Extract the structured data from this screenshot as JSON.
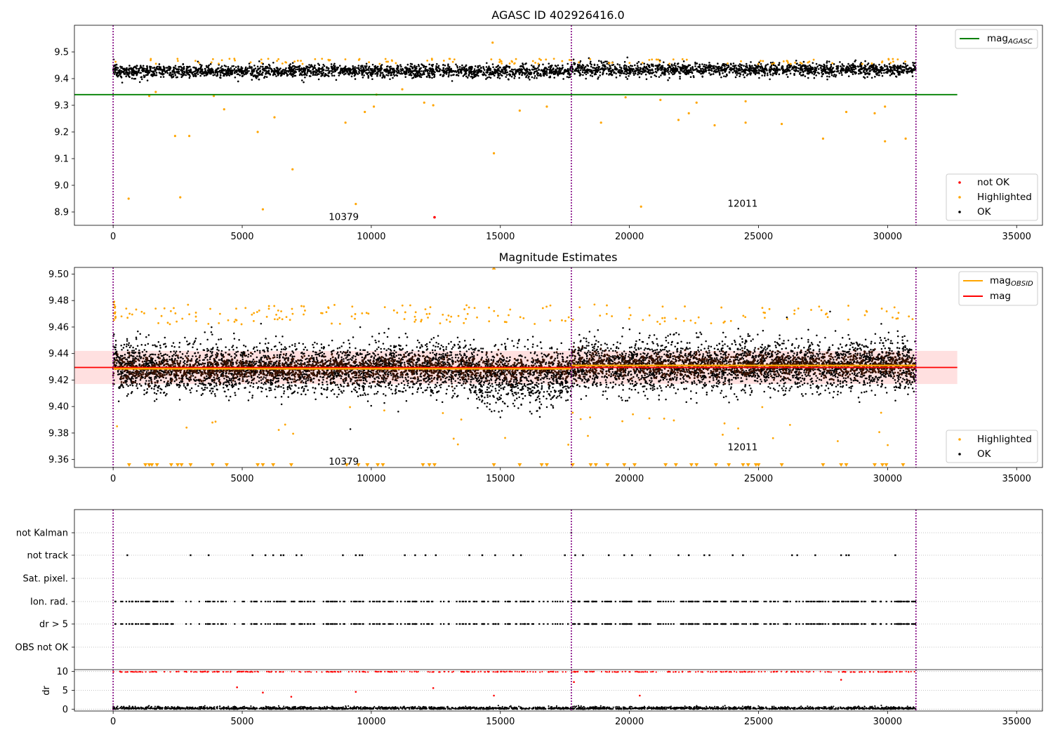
{
  "chart_data": [
    {
      "type": "scatter",
      "title": "AGASC ID 402926416.0",
      "xlim": [
        -1500,
        36000
      ],
      "ylim": [
        8.85,
        9.6
      ],
      "xticks": [
        "0",
        "5000",
        "10000",
        "15000",
        "20000",
        "25000",
        "30000",
        "35000"
      ],
      "yticks": [
        "8.9",
        "9.0",
        "9.1",
        "9.2",
        "9.3",
        "9.4",
        "9.5"
      ],
      "vlines": [
        0,
        17750,
        31100
      ],
      "hline": {
        "label": "mag_AGASC",
        "value": 9.34,
        "color": "#008000",
        "x_range": [
          -1500,
          32700
        ]
      },
      "ok_band": {
        "center": 9.43,
        "spread": 0.012,
        "start_offset": 0.04,
        "obsid_break": 17750,
        "color": "#000000"
      },
      "annotations": [
        {
          "text": "10379",
          "x": 8350,
          "y": 8.87
        },
        {
          "text": "12011",
          "x": 23800,
          "y": 8.92
        }
      ],
      "highlighted_outliers": [
        [
          600,
          8.95
        ],
        [
          2600,
          8.955
        ],
        [
          5800,
          8.91
        ],
        [
          6950,
          9.06
        ],
        [
          9400,
          8.93
        ],
        [
          14750,
          9.12
        ],
        [
          20450,
          8.92
        ],
        [
          2400,
          9.185
        ],
        [
          2950,
          9.185
        ],
        [
          5600,
          9.2
        ],
        [
          6250,
          9.255
        ],
        [
          9000,
          9.235
        ],
        [
          9750,
          9.275
        ],
        [
          10100,
          9.295
        ],
        [
          12050,
          9.31
        ],
        [
          12400,
          9.3
        ],
        [
          14700,
          9.535
        ],
        [
          15750,
          9.28
        ],
        [
          16800,
          9.295
        ],
        [
          18900,
          9.235
        ],
        [
          19850,
          9.33
        ],
        [
          21200,
          9.32
        ],
        [
          21900,
          9.245
        ],
        [
          22300,
          9.27
        ],
        [
          22600,
          9.31
        ],
        [
          23300,
          9.225
        ],
        [
          24500,
          9.235
        ],
        [
          24500,
          9.315
        ],
        [
          25900,
          9.23
        ],
        [
          27500,
          9.175
        ],
        [
          28400,
          9.275
        ],
        [
          29500,
          9.27
        ],
        [
          29900,
          9.165
        ],
        [
          29900,
          9.295
        ],
        [
          30700,
          9.175
        ],
        [
          4300,
          9.285
        ],
        [
          3900,
          9.335
        ],
        [
          1400,
          9.335
        ],
        [
          1650,
          9.35
        ],
        [
          10200,
          9.34
        ],
        [
          11200,
          9.36
        ]
      ],
      "not_ok_points": [
        [
          12450,
          8.88
        ]
      ],
      "legends": [
        {
          "label": "mag_AGASC",
          "color": "#008000"
        },
        {
          "label": "not OK",
          "color": "#ff0000"
        },
        {
          "label": "Highlighted",
          "color": "#ffa500"
        },
        {
          "label": "OK",
          "color": "#000000"
        }
      ]
    },
    {
      "type": "scatter",
      "title": "Magnitude Estimates",
      "xlim": [
        -1500,
        36000
      ],
      "ylim": [
        9.354,
        9.505
      ],
      "xticks": [
        "0",
        "5000",
        "10000",
        "15000",
        "20000",
        "25000",
        "30000",
        "35000"
      ],
      "yticks": [
        "9.36",
        "9.38",
        "9.40",
        "9.42",
        "9.44",
        "9.46",
        "9.48",
        "9.50"
      ],
      "vlines": [
        0,
        17750,
        31100
      ],
      "mag": {
        "value": 9.4295,
        "band": [
          9.417,
          9.442
        ],
        "x_range": [
          -1500,
          32700
        ],
        "color": "#ff0000"
      },
      "mag_obsid": [
        {
          "x": [
            0,
            17750
          ],
          "value": 9.4285
        },
        {
          "x": [
            17750,
            31100
          ],
          "value": 9.431
        }
      ],
      "clipped_low_markers": [
        620,
        1250,
        1400,
        1500,
        1700,
        2250,
        2500,
        2650,
        3000,
        3850,
        4400,
        5600,
        5800,
        6200,
        6900,
        9050,
        9500,
        9850,
        10250,
        10450,
        12000,
        12250,
        12450,
        14750,
        15750,
        16600,
        16800,
        17800,
        18500,
        18700,
        19150,
        19800,
        20200,
        21400,
        21800,
        22400,
        22600,
        23350,
        23850,
        24400,
        24600,
        24900,
        25000,
        25900,
        27500,
        28200,
        28400,
        29500,
        29800,
        29950,
        30600
      ],
      "annotations": [
        {
          "text": "10379",
          "x": 8350,
          "y": 9.356
        },
        {
          "text": "12011",
          "x": 23800,
          "y": 9.367
        }
      ],
      "legends": [
        {
          "label": "mag_OBSID",
          "color": "#ffa500"
        },
        {
          "label": "mag",
          "color": "#ff0000"
        },
        {
          "label": "Highlighted",
          "color": "#ffa500"
        },
        {
          "label": "OK",
          "color": "#000000"
        }
      ]
    },
    {
      "type": "scatter",
      "xlim": [
        -1500,
        36000
      ],
      "xticks": [
        "0",
        "5000",
        "10000",
        "15000",
        "20000",
        "25000",
        "30000",
        "35000"
      ],
      "flag_rows": [
        "not Kalman",
        "not track",
        "Sat. pixel.",
        "Ion. rad.",
        "dr > 5",
        "OBS not OK"
      ],
      "dr_ylim": [
        -0.5,
        10.5
      ],
      "dr_yticks": [
        "0",
        "5",
        "10"
      ],
      "dr_ylabel": "dr",
      "vlines": [
        0,
        17750,
        31100
      ]
    }
  ]
}
